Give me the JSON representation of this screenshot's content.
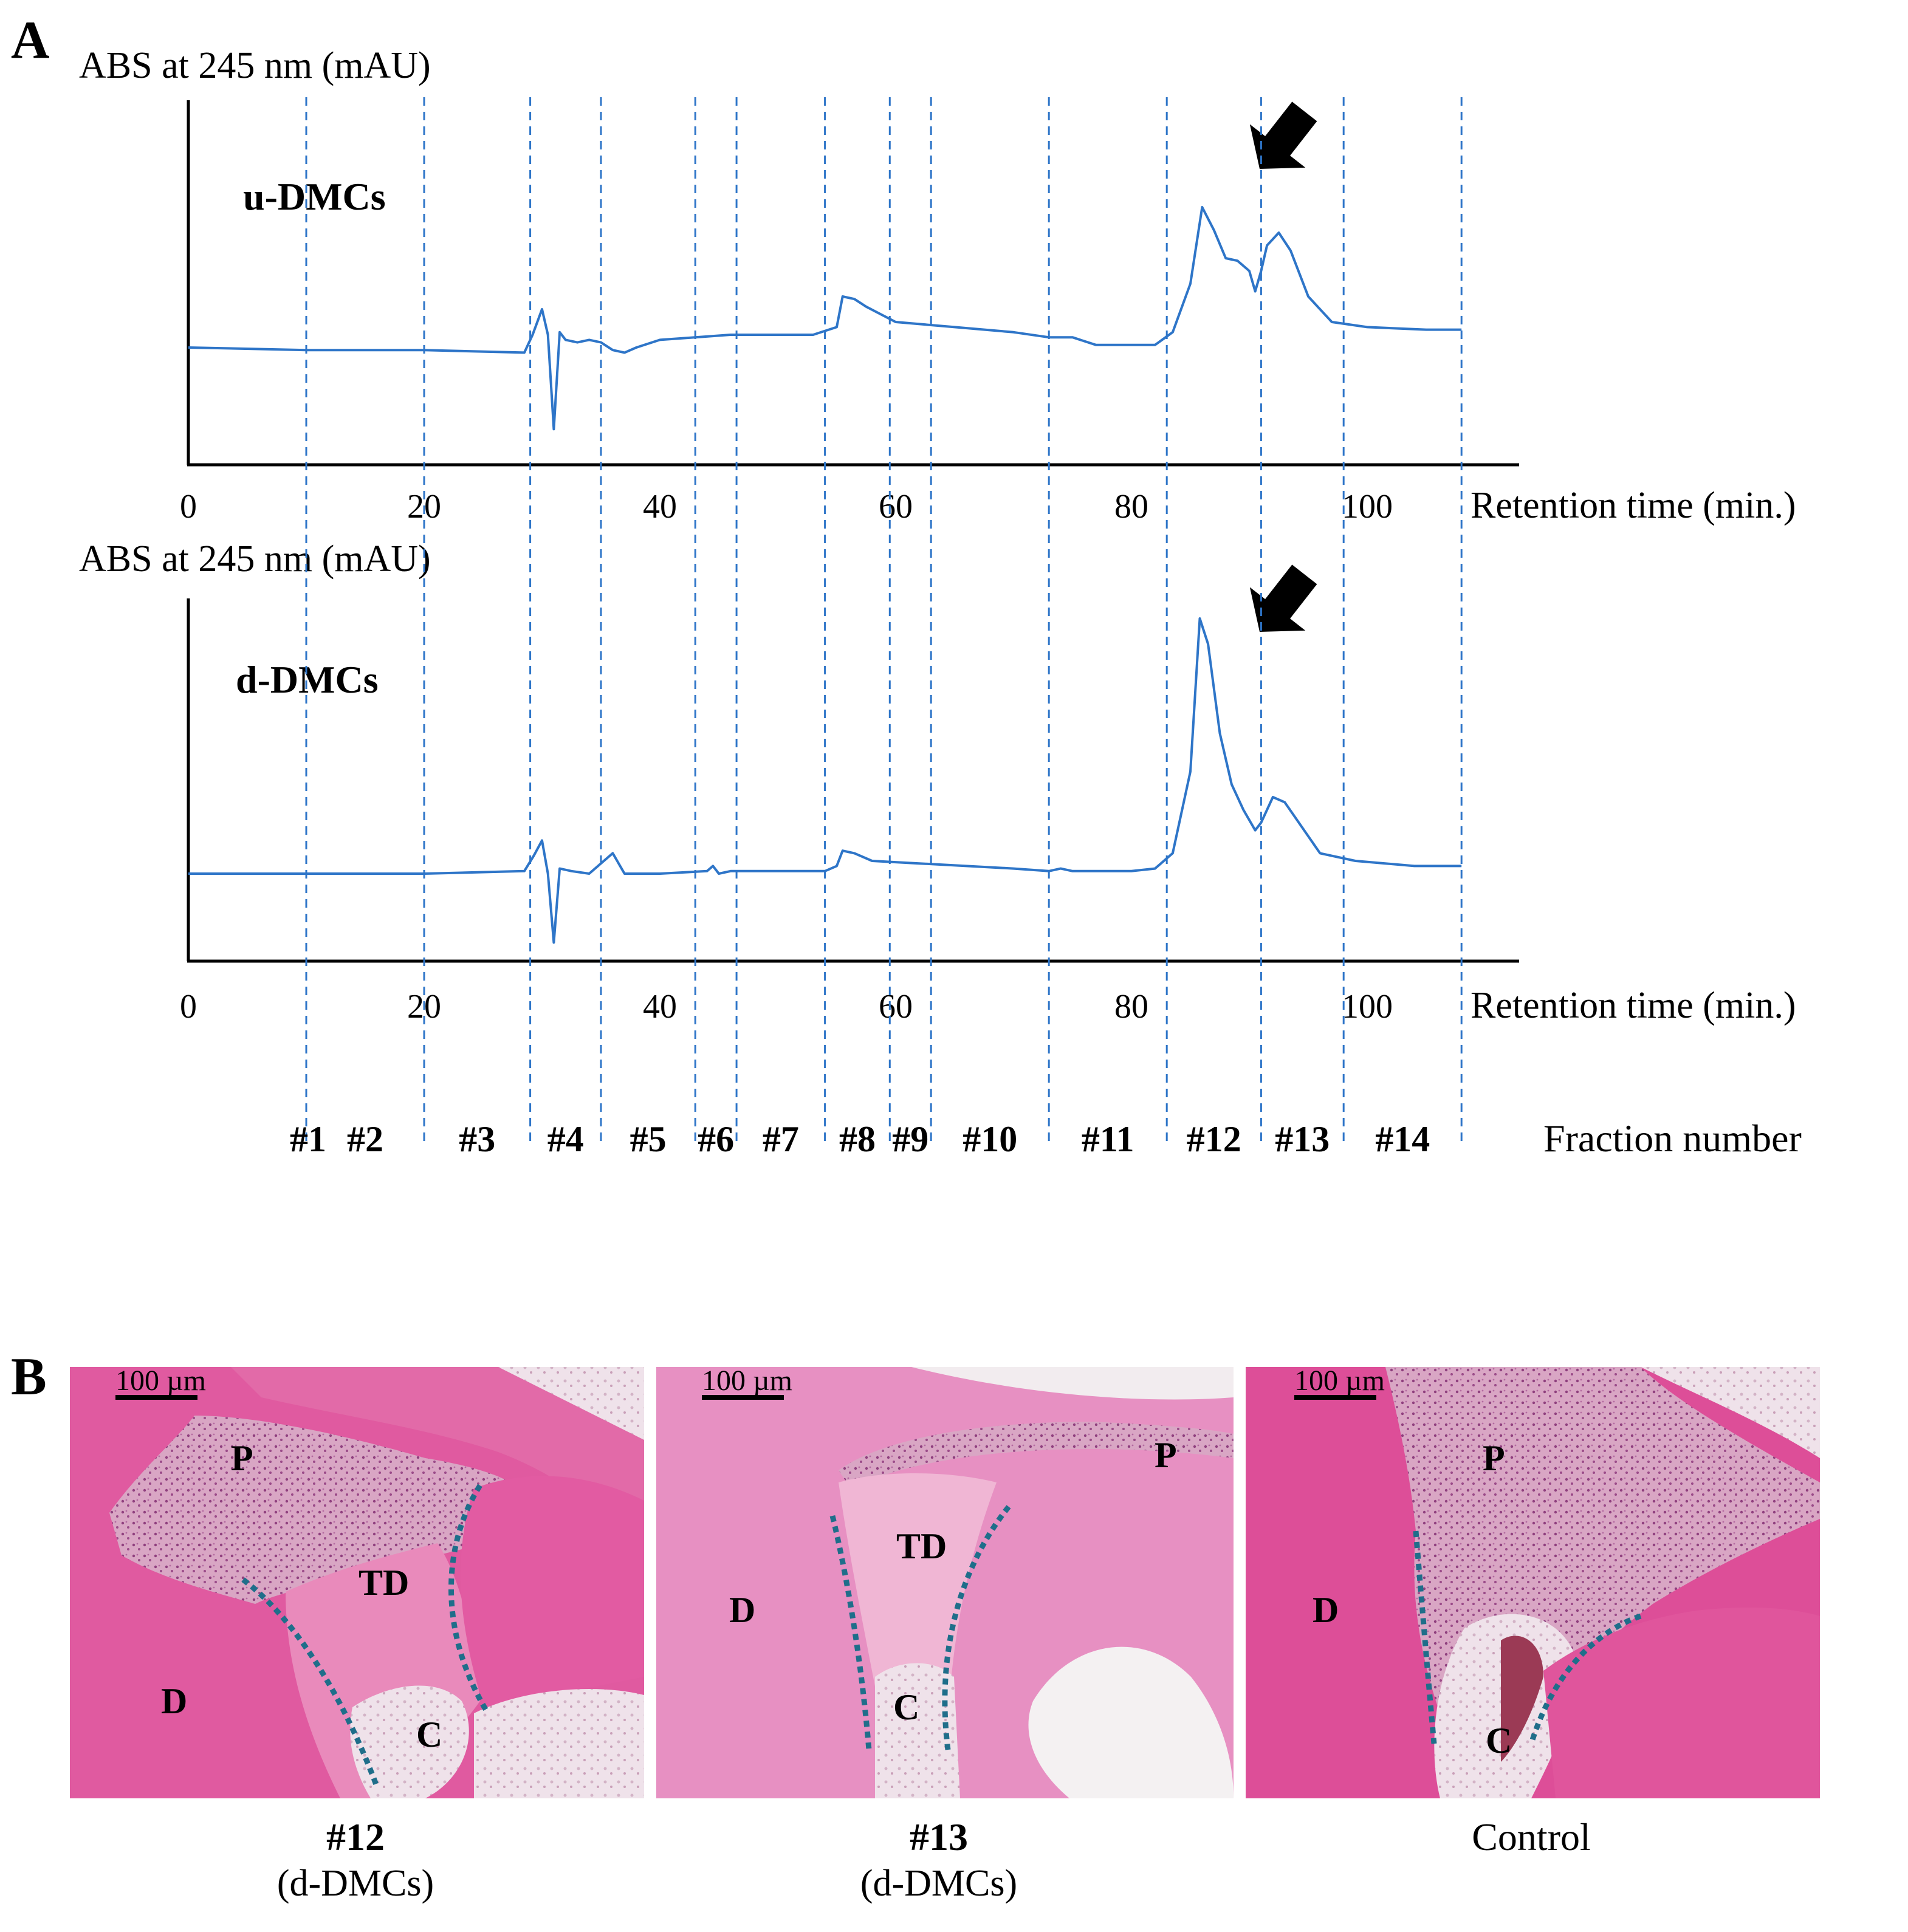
{
  "panel_a": {
    "letter": "A",
    "fraction_axis_label": "Fraction number",
    "fraction_labels": [
      "#1",
      "#2",
      "#3",
      "#4",
      "#5",
      "#6",
      "#7",
      "#8",
      "#9",
      "#10",
      "#11",
      "#12",
      "#13",
      "#14"
    ],
    "fraction_boundaries_min": [
      10,
      20,
      29,
      35,
      43,
      46.5,
      54,
      59.5,
      63,
      73,
      83,
      91,
      98,
      108
    ],
    "line_color": "#2e75c8",
    "divider_color": "#2e75c8"
  },
  "panel_b": {
    "letter": "B",
    "scale_bar_label": "100 µm",
    "images": [
      {
        "caption_main": "#12",
        "caption_sub": "(d-DMCs)",
        "labels": [
          "P",
          "TD",
          "D",
          "C"
        ]
      },
      {
        "caption_main": "#13",
        "caption_sub": "(d-DMCs)",
        "labels": [
          "P",
          "TD",
          "D",
          "C"
        ]
      },
      {
        "caption_main": "Control",
        "caption_sub": "",
        "labels": [
          "P",
          "D",
          "C"
        ]
      }
    ]
  },
  "chart_data": [
    {
      "type": "line",
      "title": "u-DMCs",
      "ylabel": "ABS at 245 nm (mAU)",
      "xlabel": "Retention time (min.)",
      "xticks": [
        0,
        20,
        40,
        60,
        80,
        100
      ],
      "xlim": [
        0,
        112
      ],
      "ylim": [
        -0.3,
        1.2
      ],
      "arrow_at_min": 91,
      "series": [
        {
          "x": [
            0,
            10,
            20,
            28.5,
            29.2,
            30,
            30.5,
            31,
            31.5,
            32,
            33,
            34,
            35,
            36,
            37,
            38,
            40,
            43,
            46,
            50,
            53,
            55,
            55.5,
            56.5,
            57.5,
            60,
            65,
            70,
            73,
            75,
            77,
            80,
            82,
            83.5,
            85,
            86,
            87,
            88,
            89,
            90,
            90.5,
            91,
            91.5,
            92.5,
            93.5,
            95,
            97,
            100,
            105,
            108
          ],
          "values": [
            0.0,
            -0.01,
            -0.01,
            -0.02,
            0.05,
            0.15,
            0.05,
            -0.32,
            0.06,
            0.03,
            0.02,
            0.03,
            0.02,
            -0.01,
            -0.02,
            0.0,
            0.03,
            0.04,
            0.05,
            0.05,
            0.05,
            0.08,
            0.2,
            0.19,
            0.16,
            0.1,
            0.08,
            0.06,
            0.04,
            0.04,
            0.01,
            0.01,
            0.01,
            0.06,
            0.25,
            0.55,
            0.46,
            0.35,
            0.34,
            0.3,
            0.22,
            0.3,
            0.4,
            0.45,
            0.38,
            0.2,
            0.1,
            0.08,
            0.07,
            0.07
          ]
        }
      ]
    },
    {
      "type": "line",
      "title": "d-DMCs",
      "ylabel": "ABS at 245 nm (mAU)",
      "xlabel": "Retention time (min.)",
      "xticks": [
        0,
        20,
        40,
        60,
        80,
        100
      ],
      "xlim": [
        0,
        112
      ],
      "ylim": [
        -0.3,
        1.2
      ],
      "arrow_at_min": 91,
      "series": [
        {
          "x": [
            0,
            10,
            20,
            28.5,
            29.3,
            30,
            30.5,
            31,
            31.5,
            32.5,
            34,
            35.5,
            36,
            37,
            38,
            40,
            44,
            44.5,
            45,
            46,
            50,
            54,
            55,
            55.5,
            56.5,
            58,
            62,
            70,
            73,
            74,
            75,
            77,
            80,
            82,
            83.5,
            85,
            85.8,
            86.5,
            87.5,
            88.5,
            89.5,
            90.5,
            91,
            92,
            93,
            94.5,
            96,
            99,
            104,
            108
          ],
          "values": [
            0.0,
            0.0,
            0.0,
            0.01,
            0.07,
            0.13,
            0.0,
            -0.27,
            0.02,
            0.01,
            0.0,
            0.06,
            0.08,
            0.0,
            0.0,
            0.0,
            0.01,
            0.03,
            0.0,
            0.01,
            0.01,
            0.01,
            0.03,
            0.09,
            0.08,
            0.05,
            0.04,
            0.02,
            0.01,
            0.02,
            0.01,
            0.01,
            0.01,
            0.02,
            0.08,
            0.4,
            1.0,
            0.9,
            0.55,
            0.35,
            0.25,
            0.17,
            0.2,
            0.3,
            0.28,
            0.18,
            0.08,
            0.05,
            0.03,
            0.03
          ]
        }
      ]
    }
  ]
}
